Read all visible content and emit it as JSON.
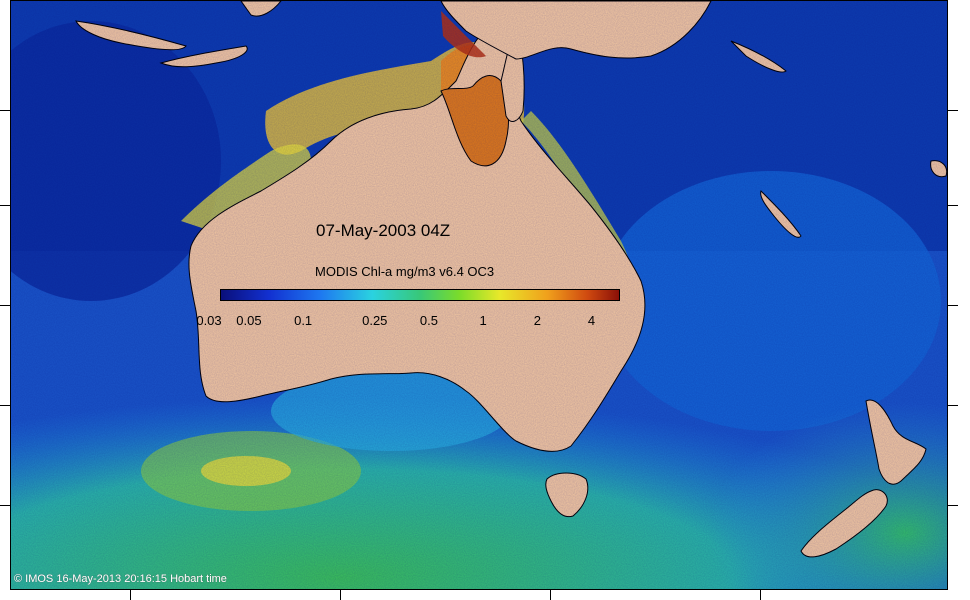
{
  "map": {
    "date_title": "07-May-2003 04Z",
    "colorbar_title": "MODIS Chl-a mg/m3 v6.4 OC3",
    "colorbar_labels": [
      "0.03",
      "0.05",
      "0.1",
      "0.25",
      "0.5",
      "1",
      "2",
      "4"
    ],
    "colorbar_values": [
      0.03,
      0.05,
      0.1,
      0.25,
      0.5,
      1,
      2,
      4
    ],
    "colorbar_range": [
      0.03,
      5.0
    ],
    "copyright": "© IMOS 16-May-2013 20:16:15 Hobart time",
    "land_name": "Australia"
  },
  "colors": {
    "land": "#f5c9a0",
    "ocean_deep": "#0b2c9e",
    "ocean_mid": "#1a7be0",
    "ocean_cyan": "#2ad2d6",
    "ocean_green": "#3cc25a",
    "coastal_yellow": "#e8e03a",
    "coastal_orange": "#f08a1c",
    "coastal_red": "#b8320e"
  }
}
